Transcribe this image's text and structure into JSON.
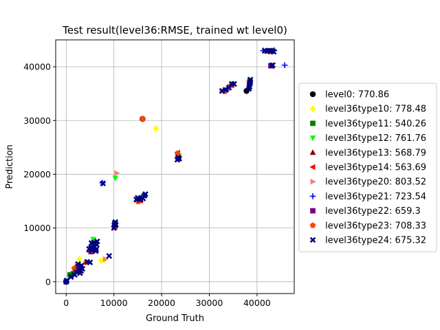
{
  "chart_data": {
    "type": "scatter",
    "title": "Test result(level36:RMSE, trained wt level0)",
    "xlabel": "Ground Truth",
    "ylabel": "Prediction",
    "xlim": [
      -2200,
      47800
    ],
    "ylim": [
      -2200,
      45000
    ],
    "xticks": [
      0,
      10000,
      20000,
      30000,
      40000
    ],
    "yticks": [
      0,
      10000,
      20000,
      30000,
      40000
    ],
    "grid": true,
    "legend_position": "center-right, outside plot",
    "series": [
      {
        "name": "level0: 770.86",
        "marker": "circle",
        "color": "#000000",
        "points": [
          [
            0,
            0
          ],
          [
            1200,
            1300
          ],
          [
            2500,
            2600
          ],
          [
            5400,
            6100
          ],
          [
            10200,
            10500
          ],
          [
            15300,
            15100
          ],
          [
            16000,
            30300
          ],
          [
            23500,
            23200
          ],
          [
            37800,
            35500
          ],
          [
            43200,
            42900
          ]
        ]
      },
      {
        "name": "level36type10: 778.48",
        "marker": "diamond",
        "color": "#ffff00",
        "points": [
          [
            2800,
            4200
          ],
          [
            7300,
            3900
          ],
          [
            8000,
            4100
          ],
          [
            18800,
            28500
          ],
          [
            42000,
            43000
          ],
          [
            43500,
            43200
          ]
        ]
      },
      {
        "name": "level36type11: 540.26",
        "marker": "square",
        "color": "#008000",
        "points": [
          [
            800,
            1300
          ],
          [
            1500,
            1500
          ],
          [
            3000,
            2600
          ],
          [
            5500,
            6300
          ],
          [
            10200,
            10800
          ],
          [
            15300,
            15300
          ],
          [
            23500,
            23300
          ],
          [
            38500,
            37200
          ]
        ]
      },
      {
        "name": "level36type12: 761.76",
        "marker": "triangle-down",
        "color": "#00ff00",
        "points": [
          [
            5700,
            7900
          ],
          [
            10300,
            19300
          ],
          [
            15800,
            15700
          ],
          [
            23600,
            23400
          ],
          [
            38500,
            37500
          ]
        ]
      },
      {
        "name": "level36type13: 568.79",
        "marker": "triangle-up",
        "color": "#800000",
        "points": [
          [
            2000,
            2400
          ],
          [
            4800,
            5900
          ],
          [
            10200,
            10400
          ],
          [
            15000,
            15200
          ],
          [
            23500,
            23600
          ],
          [
            33500,
            35700
          ],
          [
            38400,
            36300
          ]
        ]
      },
      {
        "name": "level36type14: 563.69",
        "marker": "triangle-left",
        "color": "#ff0000",
        "points": [
          [
            1800,
            2600
          ],
          [
            5200,
            6100
          ],
          [
            10100,
            10300
          ],
          [
            15600,
            15100
          ],
          [
            23400,
            24000
          ],
          [
            32800,
            35600
          ],
          [
            34400,
            36600
          ],
          [
            43100,
            40100
          ]
        ]
      },
      {
        "name": "level36type20: 803.52",
        "marker": "triangle-right",
        "color": "#f08080",
        "points": [
          [
            2300,
            3000
          ],
          [
            8200,
            4200
          ],
          [
            10600,
            20200
          ],
          [
            15700,
            15600
          ],
          [
            32600,
            35500
          ],
          [
            43100,
            42900
          ]
        ]
      },
      {
        "name": "level36type21: 723.54",
        "marker": "plus",
        "color": "#0000ff",
        "points": [
          [
            0,
            100
          ],
          [
            1200,
            1100
          ],
          [
            3100,
            2800
          ],
          [
            5600,
            7000
          ],
          [
            7600,
            18400
          ],
          [
            10200,
            10800
          ],
          [
            15800,
            15700
          ],
          [
            23500,
            22900
          ],
          [
            33600,
            35600
          ],
          [
            38500,
            36800
          ],
          [
            41300,
            43000
          ],
          [
            43600,
            43000
          ],
          [
            45800,
            40300
          ]
        ]
      },
      {
        "name": "level36type22: 659.3",
        "marker": "square",
        "color": "#800080",
        "points": [
          [
            2500,
            2800
          ],
          [
            5200,
            5600
          ],
          [
            10200,
            10300
          ],
          [
            15300,
            15400
          ],
          [
            23500,
            23000
          ],
          [
            38400,
            37000
          ],
          [
            42900,
            40200
          ]
        ]
      },
      {
        "name": "level36type23: 708.33",
        "marker": "pentagon",
        "color": "#ff4500",
        "points": [
          [
            1700,
            2500
          ],
          [
            4200,
            3600
          ],
          [
            5700,
            5800
          ],
          [
            10300,
            10100
          ],
          [
            15100,
            14900
          ],
          [
            16000,
            30300
          ],
          [
            23300,
            23900
          ],
          [
            33200,
            35400
          ],
          [
            34800,
            36500
          ],
          [
            38400,
            37300
          ],
          [
            42600,
            42800
          ]
        ]
      },
      {
        "name": "level36type24: 675.32",
        "marker": "x",
        "color": "#000080",
        "points": [
          [
            0,
            0
          ],
          [
            100,
            200
          ],
          [
            1000,
            900
          ],
          [
            1800,
            1300
          ],
          [
            2200,
            1800
          ],
          [
            2600,
            2200
          ],
          [
            3000,
            2600
          ],
          [
            3200,
            3000
          ],
          [
            2500,
            3300
          ],
          [
            2900,
            1600
          ],
          [
            3100,
            2000
          ],
          [
            3400,
            2400
          ],
          [
            4400,
            3700
          ],
          [
            5000,
            3600
          ],
          [
            4800,
            6100
          ],
          [
            5200,
            6300
          ],
          [
            5500,
            5800
          ],
          [
            5600,
            6700
          ],
          [
            5800,
            7300
          ],
          [
            6000,
            6500
          ],
          [
            6200,
            5700
          ],
          [
            6400,
            6900
          ],
          [
            6500,
            7500
          ],
          [
            5300,
            7200
          ],
          [
            6300,
            6000
          ],
          [
            9000,
            4800
          ],
          [
            7700,
            18300
          ],
          [
            10000,
            10000
          ],
          [
            10100,
            10500
          ],
          [
            10200,
            10900
          ],
          [
            10300,
            11100
          ],
          [
            10400,
            10600
          ],
          [
            14700,
            15300
          ],
          [
            15000,
            15600
          ],
          [
            15300,
            15400
          ],
          [
            15600,
            15300
          ],
          [
            16100,
            15500
          ],
          [
            16400,
            16000
          ],
          [
            16600,
            16300
          ],
          [
            23300,
            22700
          ],
          [
            23500,
            23100
          ],
          [
            23700,
            22900
          ],
          [
            32700,
            35500
          ],
          [
            33400,
            35700
          ],
          [
            34100,
            36100
          ],
          [
            34700,
            36800
          ],
          [
            35200,
            36800
          ],
          [
            38300,
            35900
          ],
          [
            38400,
            36300
          ],
          [
            38500,
            36800
          ],
          [
            38600,
            37200
          ],
          [
            38600,
            37600
          ],
          [
            41600,
            43000
          ],
          [
            42100,
            42900
          ],
          [
            42600,
            43000
          ],
          [
            43000,
            43000
          ],
          [
            43500,
            42800
          ],
          [
            43100,
            40200
          ],
          [
            43300,
            40300
          ]
        ]
      }
    ]
  }
}
